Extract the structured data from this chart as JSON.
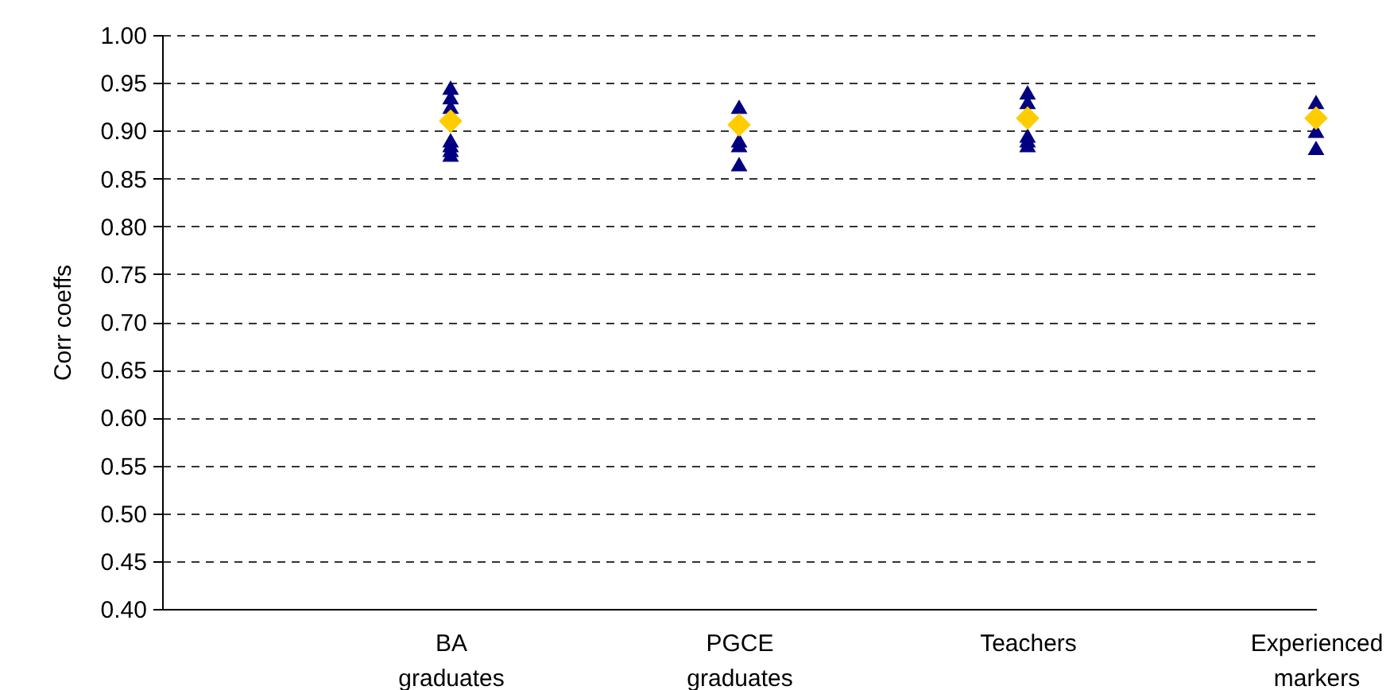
{
  "chart_data": {
    "type": "scatter",
    "ylabel": "Corr coeffs",
    "categories": [
      null,
      "BA graduates",
      "PGCE graduates",
      "Teachers",
      "Experienced markers"
    ],
    "ylim": [
      0.4,
      1.0
    ],
    "yticks": [
      {
        "value": 0.4,
        "label": "0.40"
      },
      {
        "value": 0.45,
        "label": "0.45"
      },
      {
        "value": 0.5,
        "label": "0.50"
      },
      {
        "value": 0.55,
        "label": "0.55"
      },
      {
        "value": 0.6,
        "label": "0.60"
      },
      {
        "value": 0.65,
        "label": "0.65"
      },
      {
        "value": 0.7,
        "label": "0.70"
      },
      {
        "value": 0.75,
        "label": "0.75"
      },
      {
        "value": 0.8,
        "label": "0.80"
      },
      {
        "value": 0.85,
        "label": "0.85"
      },
      {
        "value": 0.9,
        "label": "0.90"
      },
      {
        "value": 0.95,
        "label": "0.95"
      },
      {
        "value": 1.0,
        "label": "1.00"
      }
    ],
    "grid": "y",
    "line_style": "dashed",
    "series": [
      {
        "color": "#000080",
        "marker": "triangle",
        "x": [
          "BA graduates",
          "BA graduates",
          "BA graduates",
          "BA graduates",
          "BA graduates",
          "BA graduates",
          "BA graduates",
          "PGCE graduates",
          "PGCE graduates",
          "PGCE graduates",
          "PGCE graduates",
          "Teachers",
          "Teachers",
          "Teachers",
          "Teachers",
          "Teachers",
          "Experienced markers",
          "Experienced markers",
          "Experienced markers"
        ],
        "values": [
          0.945,
          0.935,
          0.925,
          0.89,
          0.885,
          0.88,
          0.875,
          0.925,
          0.89,
          0.885,
          0.865,
          0.94,
          0.93,
          0.895,
          0.89,
          0.885,
          0.93,
          0.9,
          0.882
        ]
      },
      {
        "color": "#ffcc00",
        "marker": "diamond",
        "x": [
          "BA graduates",
          "PGCE graduates",
          "Teachers",
          "Experienced markers"
        ],
        "values": [
          0.91,
          0.906,
          0.913,
          0.913
        ]
      }
    ]
  }
}
